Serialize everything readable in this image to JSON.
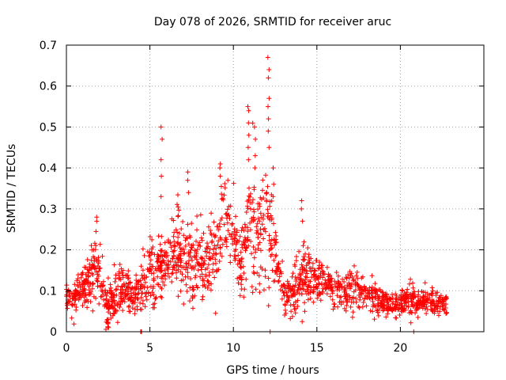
{
  "chart_data": {
    "type": "scatter",
    "title": "Day 078 of 2026, SRMTID for receiver aruc",
    "xlabel": "GPS time / hours",
    "ylabel": "SRMTID / TECUs",
    "xlim": [
      0,
      25
    ],
    "ylim": [
      0,
      0.7
    ],
    "xticks": [
      "0",
      "5",
      "10",
      "15",
      "20"
    ],
    "yticks": [
      "0",
      "0.1",
      "0.2",
      "0.3",
      "0.4",
      "0.5",
      "0.6",
      "0.7"
    ],
    "grid": true,
    "marker": "plus",
    "color": "#ff0000",
    "series": [
      {
        "name": "SRMTID",
        "profile_x": [
          0.0,
          0.5,
          1.0,
          1.5,
          1.8,
          2.0,
          2.3,
          2.5,
          3.0,
          3.5,
          4.0,
          4.3,
          4.6,
          5.0,
          5.4,
          5.7,
          6.0,
          6.5,
          7.0,
          7.3,
          7.6,
          8.0,
          8.5,
          9.0,
          9.3,
          9.6,
          10.0,
          10.4,
          10.8,
          11.0,
          11.3,
          11.6,
          12.0,
          12.3,
          12.6,
          12.8,
          13.0,
          13.3,
          13.6,
          14.0,
          14.5,
          15.0,
          15.5,
          16.0,
          16.5,
          17.0,
          17.5,
          18.0,
          18.5,
          19.0,
          19.5,
          20.0,
          20.5,
          21.0,
          21.5,
          22.0,
          22.5,
          22.8
        ],
        "profile_center": [
          0.08,
          0.08,
          0.1,
          0.14,
          0.17,
          0.15,
          0.07,
          0.06,
          0.09,
          0.1,
          0.09,
          0.1,
          0.12,
          0.15,
          0.13,
          0.16,
          0.15,
          0.2,
          0.19,
          0.2,
          0.17,
          0.18,
          0.17,
          0.2,
          0.25,
          0.27,
          0.24,
          0.15,
          0.2,
          0.3,
          0.25,
          0.23,
          0.28,
          0.22,
          0.18,
          0.14,
          0.1,
          0.09,
          0.1,
          0.12,
          0.13,
          0.12,
          0.13,
          0.1,
          0.1,
          0.11,
          0.1,
          0.09,
          0.08,
          0.07,
          0.07,
          0.07,
          0.08,
          0.07,
          0.08,
          0.07,
          0.07,
          0.07
        ],
        "profile_spread": [
          0.03,
          0.03,
          0.04,
          0.05,
          0.07,
          0.05,
          0.04,
          0.04,
          0.04,
          0.04,
          0.03,
          0.04,
          0.05,
          0.06,
          0.05,
          0.06,
          0.05,
          0.06,
          0.06,
          0.07,
          0.06,
          0.06,
          0.05,
          0.07,
          0.09,
          0.08,
          0.08,
          0.05,
          0.07,
          0.11,
          0.09,
          0.07,
          0.12,
          0.07,
          0.05,
          0.04,
          0.04,
          0.03,
          0.04,
          0.05,
          0.05,
          0.04,
          0.04,
          0.03,
          0.03,
          0.04,
          0.03,
          0.03,
          0.03,
          0.02,
          0.02,
          0.02,
          0.03,
          0.02,
          0.02,
          0.02,
          0.02,
          0.02
        ],
        "n_points": 1800,
        "peaks": [
          {
            "x": 5.7,
            "y": [
              0.5,
              0.47,
              0.42,
              0.38,
              0.33
            ]
          },
          {
            "x": 7.3,
            "y": [
              0.39,
              0.37,
              0.34
            ]
          },
          {
            "x": 9.2,
            "y": [
              0.41,
              0.4,
              0.38
            ]
          },
          {
            "x": 10.9,
            "y": [
              0.55,
              0.54,
              0.51,
              0.48,
              0.45,
              0.42
            ]
          },
          {
            "x": 11.3,
            "y": [
              0.5,
              0.47,
              0.43,
              0.4
            ]
          },
          {
            "x": 12.1,
            "y": [
              0.67,
              0.64,
              0.62,
              0.57,
              0.55,
              0.52,
              0.49,
              0.45
            ]
          },
          {
            "x": 12.4,
            "y": [
              0.4,
              0.36,
              0.33
            ]
          },
          {
            "x": 14.1,
            "y": [
              0.32,
              0.3,
              0.27
            ]
          },
          {
            "x": 1.8,
            "y": [
              0.28,
              0.27
            ]
          },
          {
            "x": 2.5,
            "y": [
              0.02,
              0.03,
              0.01
            ]
          }
        ],
        "zero_points_x": [
          4.45,
          4.5,
          12.2,
          20.8
        ]
      }
    ]
  }
}
